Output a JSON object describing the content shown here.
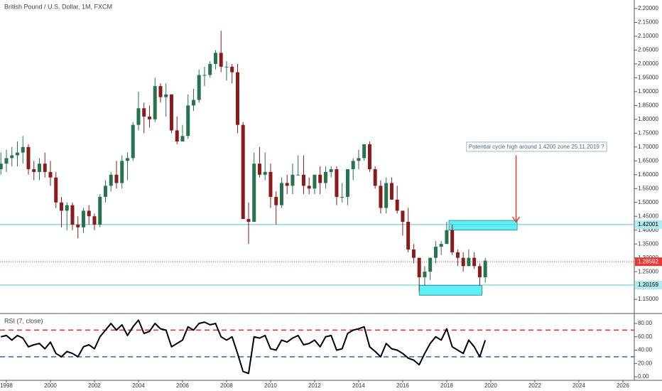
{
  "chart_data": [
    {
      "type": "candlestick",
      "title": "British Pound / U.S. Dollar, 1M, FXCM",
      "x": [
        1997.75,
        1998,
        1998.25,
        1998.5,
        1998.75,
        1999,
        1999.25,
        1999.5,
        1999.75,
        2000,
        2000.25,
        2000.5,
        2000.75,
        2001,
        2001.25,
        2001.5,
        2001.75,
        2002,
        2002.25,
        2002.5,
        2002.75,
        2003,
        2003.25,
        2003.5,
        2003.75,
        2004,
        2004.25,
        2004.5,
        2004.75,
        2005,
        2005.25,
        2005.5,
        2005.75,
        2006,
        2006.25,
        2006.5,
        2006.75,
        2007,
        2007.25,
        2007.5,
        2007.75,
        2008,
        2008.25,
        2008.5,
        2008.75,
        2009,
        2009.25,
        2009.5,
        2009.75,
        2010,
        2010.25,
        2010.5,
        2010.75,
        2011,
        2011.25,
        2011.5,
        2011.75,
        2012,
        2012.25,
        2012.5,
        2012.75,
        2013,
        2013.25,
        2013.5,
        2013.75,
        2014,
        2014.25,
        2014.5,
        2014.75,
        2015,
        2015.25,
        2015.5,
        2015.75,
        2016,
        2016.25,
        2016.5,
        2016.75,
        2017,
        2017.25,
        2017.5,
        2017.75,
        2018,
        2018.25,
        2018.5,
        2018.75,
        2019,
        2019.25,
        2019.5,
        2019.75
      ],
      "open": [
        1.62,
        1.64,
        1.66,
        1.67,
        1.68,
        1.7,
        1.62,
        1.61,
        1.64,
        1.61,
        1.59,
        1.5,
        1.47,
        1.49,
        1.42,
        1.41,
        1.47,
        1.45,
        1.42,
        1.52,
        1.56,
        1.6,
        1.57,
        1.65,
        1.66,
        1.78,
        1.84,
        1.81,
        1.8,
        1.92,
        1.88,
        1.89,
        1.76,
        1.72,
        1.74,
        1.85,
        1.87,
        1.96,
        1.96,
        2.0,
        2.04,
        1.99,
        1.99,
        1.97,
        1.78,
        1.44,
        1.43,
        1.64,
        1.6,
        1.61,
        1.52,
        1.49,
        1.57,
        1.56,
        1.6,
        1.6,
        1.56,
        1.55,
        1.6,
        1.57,
        1.61,
        1.62,
        1.52,
        1.52,
        1.62,
        1.65,
        1.66,
        1.71,
        1.62,
        1.56,
        1.48,
        1.57,
        1.51,
        1.47,
        1.43,
        1.33,
        1.3,
        1.23,
        1.25,
        1.3,
        1.34,
        1.35,
        1.4,
        1.32,
        1.3,
        1.27,
        1.3,
        1.27,
        1.23
      ],
      "high": [
        1.68,
        1.69,
        1.7,
        1.72,
        1.74,
        1.71,
        1.65,
        1.66,
        1.68,
        1.65,
        1.61,
        1.52,
        1.5,
        1.5,
        1.45,
        1.48,
        1.49,
        1.46,
        1.53,
        1.58,
        1.61,
        1.65,
        1.67,
        1.68,
        1.79,
        1.9,
        1.86,
        1.85,
        1.95,
        1.93,
        1.93,
        1.89,
        1.81,
        1.78,
        1.89,
        1.91,
        1.98,
        1.99,
        2.01,
        2.05,
        2.12,
        2.01,
        2.0,
        2.0,
        1.79,
        1.5,
        1.68,
        1.7,
        1.68,
        1.64,
        1.54,
        1.59,
        1.6,
        1.64,
        1.67,
        1.67,
        1.59,
        1.6,
        1.63,
        1.63,
        1.63,
        1.63,
        1.57,
        1.62,
        1.66,
        1.69,
        1.71,
        1.72,
        1.63,
        1.58,
        1.59,
        1.59,
        1.56,
        1.47,
        1.48,
        1.35,
        1.3,
        1.27,
        1.3,
        1.36,
        1.36,
        1.43,
        1.42,
        1.33,
        1.32,
        1.33,
        1.32,
        1.28,
        1.3
      ],
      "low": [
        1.6,
        1.61,
        1.63,
        1.63,
        1.64,
        1.6,
        1.58,
        1.58,
        1.59,
        1.56,
        1.48,
        1.41,
        1.4,
        1.4,
        1.37,
        1.39,
        1.42,
        1.4,
        1.41,
        1.5,
        1.54,
        1.55,
        1.55,
        1.58,
        1.65,
        1.76,
        1.75,
        1.77,
        1.79,
        1.86,
        1.81,
        1.75,
        1.71,
        1.72,
        1.73,
        1.83,
        1.86,
        1.92,
        1.95,
        1.98,
        1.97,
        1.94,
        1.93,
        1.75,
        1.44,
        1.35,
        1.43,
        1.59,
        1.58,
        1.48,
        1.42,
        1.48,
        1.53,
        1.53,
        1.6,
        1.53,
        1.53,
        1.53,
        1.53,
        1.55,
        1.59,
        1.49,
        1.5,
        1.49,
        1.58,
        1.62,
        1.65,
        1.61,
        1.55,
        1.46,
        1.46,
        1.51,
        1.46,
        1.38,
        1.32,
        1.28,
        1.18,
        1.2,
        1.22,
        1.28,
        1.31,
        1.35,
        1.31,
        1.27,
        1.25,
        1.27,
        1.26,
        1.2,
        1.21
      ],
      "close": [
        1.64,
        1.66,
        1.67,
        1.68,
        1.7,
        1.62,
        1.61,
        1.64,
        1.61,
        1.59,
        1.5,
        1.47,
        1.49,
        1.42,
        1.41,
        1.47,
        1.45,
        1.42,
        1.52,
        1.56,
        1.6,
        1.57,
        1.65,
        1.66,
        1.78,
        1.84,
        1.81,
        1.8,
        1.92,
        1.88,
        1.89,
        1.76,
        1.72,
        1.74,
        1.85,
        1.87,
        1.96,
        1.96,
        2.0,
        2.04,
        1.99,
        1.99,
        1.97,
        1.78,
        1.44,
        1.43,
        1.64,
        1.6,
        1.61,
        1.52,
        1.49,
        1.57,
        1.56,
        1.6,
        1.6,
        1.56,
        1.55,
        1.6,
        1.57,
        1.61,
        1.62,
        1.52,
        1.52,
        1.62,
        1.65,
        1.66,
        1.71,
        1.62,
        1.56,
        1.48,
        1.57,
        1.51,
        1.47,
        1.43,
        1.33,
        1.3,
        1.23,
        1.25,
        1.3,
        1.34,
        1.35,
        1.4,
        1.32,
        1.3,
        1.27,
        1.3,
        1.27,
        1.23,
        1.29
      ],
      "up_color": "#26734d",
      "down_color": "#8b1a1a",
      "xlim": [
        1997.71,
        2026.52
      ],
      "ylim": [
        1.1015,
        2.2308
      ],
      "yticks": [
        {
          "value": 2.2,
          "label": "2.20000"
        },
        {
          "value": 2.15,
          "label": "2.15000"
        },
        {
          "value": 2.1,
          "label": "2.10000"
        },
        {
          "value": 2.05,
          "label": "2.05000"
        },
        {
          "value": 2.0,
          "label": "2.00000"
        },
        {
          "value": 1.95,
          "label": "1.95000"
        },
        {
          "value": 1.9,
          "label": "1.90000"
        },
        {
          "value": 1.85,
          "label": "1.85000"
        },
        {
          "value": 1.8,
          "label": "1.80000"
        },
        {
          "value": 1.75,
          "label": "1.75000"
        },
        {
          "value": 1.7,
          "label": "1.70000"
        },
        {
          "value": 1.65,
          "label": "1.65000"
        },
        {
          "value": 1.6,
          "label": "1.60000"
        },
        {
          "value": 1.55,
          "label": "1.55000"
        },
        {
          "value": 1.5,
          "label": "1.50000"
        },
        {
          "value": 1.45,
          "label": "1.45000"
        },
        {
          "value": 1.4,
          "label": "1.40000"
        },
        {
          "value": 1.35,
          "label": "1.35000"
        },
        {
          "value": 1.3,
          "label": "1.30000"
        },
        {
          "value": 1.25,
          "label": "1.25000"
        },
        {
          "value": 1.15,
          "label": "1.15000"
        }
      ],
      "hlines": [
        {
          "value": 1.42001,
          "color": "#4fc3d9",
          "label_color": "#b2ebf2",
          "text_color": "#000000",
          "dash": "none"
        },
        {
          "value": 1.28592,
          "color": "#e53935",
          "label_color": "#e53935",
          "text_color": "#ffffff",
          "dash": "1 2"
        },
        {
          "value": 1.20159,
          "color": "#4fc3d9",
          "label_color": "#b2ebf2",
          "text_color": "#000000",
          "dash": "none"
        }
      ],
      "zones": [
        {
          "x": [
            2018.1,
            2021.2
          ],
          "y": [
            1.4,
            1.435
          ],
          "color": "#5ef0f5"
        },
        {
          "x": [
            2016.75,
            2019.6
          ],
          "y": [
            1.165,
            1.2
          ],
          "color": "#5ef0f5"
        }
      ],
      "annotation": {
        "text": "Potential cycle high around 1.4200 zone 25.11.2019 ?",
        "x": 2018.9,
        "y": 1.7
      },
      "arrow": {
        "x": 2021.15,
        "from": 1.67,
        "to": 1.43,
        "color": "#e53935"
      }
    },
    {
      "type": "line",
      "title": "RSI (7, close)",
      "x": [
        1997.75,
        1998,
        1998.25,
        1998.5,
        1998.75,
        1999,
        1999.25,
        1999.5,
        1999.75,
        2000,
        2000.25,
        2000.5,
        2000.75,
        2001,
        2001.25,
        2001.5,
        2001.75,
        2002,
        2002.25,
        2002.5,
        2002.75,
        2003,
        2003.25,
        2003.5,
        2003.75,
        2004,
        2004.25,
        2004.5,
        2004.75,
        2005,
        2005.25,
        2005.5,
        2005.75,
        2006,
        2006.25,
        2006.5,
        2006.75,
        2007,
        2007.25,
        2007.5,
        2007.75,
        2008,
        2008.25,
        2008.5,
        2008.75,
        2009,
        2009.25,
        2009.5,
        2009.75,
        2010,
        2010.25,
        2010.5,
        2010.75,
        2011,
        2011.25,
        2011.5,
        2011.75,
        2012,
        2012.25,
        2012.5,
        2012.75,
        2013,
        2013.25,
        2013.5,
        2013.75,
        2014,
        2014.25,
        2014.5,
        2014.75,
        2015,
        2015.25,
        2015.5,
        2015.75,
        2016,
        2016.25,
        2016.5,
        2016.75,
        2017,
        2017.25,
        2017.5,
        2017.75,
        2018,
        2018.25,
        2018.5,
        2018.75,
        2019,
        2019.25,
        2019.5,
        2019.75
      ],
      "values": [
        60,
        62,
        55,
        62,
        58,
        45,
        48,
        50,
        42,
        52,
        35,
        30,
        38,
        35,
        30,
        45,
        48,
        42,
        60,
        70,
        80,
        70,
        78,
        62,
        75,
        85,
        65,
        68,
        80,
        72,
        70,
        45,
        50,
        55,
        75,
        70,
        80,
        82,
        78,
        80,
        60,
        55,
        60,
        35,
        8,
        5,
        60,
        58,
        62,
        42,
        40,
        55,
        52,
        58,
        62,
        48,
        50,
        55,
        45,
        60,
        62,
        40,
        42,
        65,
        70,
        72,
        75,
        45,
        38,
        30,
        50,
        42,
        40,
        35,
        28,
        25,
        18,
        35,
        50,
        60,
        55,
        72,
        45,
        40,
        35,
        55,
        45,
        30,
        55
      ],
      "color": "#000000",
      "xlim": [
        1997.71,
        2026.52
      ],
      "ylim": [
        -5.3,
        94.9
      ],
      "levels": [
        {
          "value": 70,
          "color": "#e53935"
        },
        {
          "value": 30,
          "color": "#1e6fb8"
        }
      ],
      "yticks": [
        {
          "value": 80,
          "label": "80.00"
        },
        {
          "value": 60,
          "label": "60.00"
        },
        {
          "value": 40,
          "label": "40.00"
        },
        {
          "value": 20,
          "label": "20.00"
        },
        {
          "value": 0,
          "label": "0.00"
        }
      ],
      "xticks": [
        1998,
        2000,
        2002,
        2004,
        2006,
        2008,
        2010,
        2012,
        2014,
        2016,
        2018,
        2020,
        2022,
        2024,
        2026
      ]
    }
  ]
}
